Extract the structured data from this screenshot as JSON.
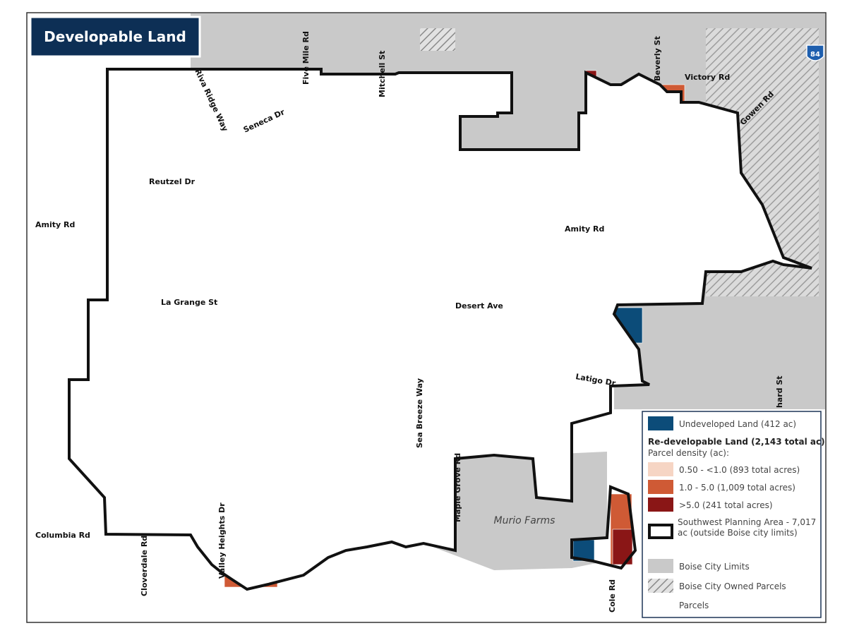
{
  "title": "Developable Land",
  "interstate": "84",
  "roads": [
    "Riva Ridge Way",
    "Five Mile Rd",
    "Mitchell St",
    "Seneca Dr",
    "Beverly St",
    "Victory Rd",
    "Gowen Rd",
    "Reutzel Dr",
    "Amity Rd",
    "Amity Rd",
    "La Grange St",
    "Desert Ave",
    "Latigo Dr",
    "Sea Breeze Way",
    "Maple Grove Rd",
    "Columbia Rd",
    "Cloverdale Rd",
    "Valley Heights Dr",
    "Cole Rd",
    "hard St"
  ],
  "places": [
    "Murio Farms"
  ],
  "legend": {
    "undeveloped": "Undeveloped Land (412 ac)",
    "heading": "Re-developable Land (2,143 total ac)",
    "subheading": "Parcel density (ac):",
    "low": "0.50 - <1.0 (893 total acres)",
    "mid": "1.0 - 5.0 (1,009 total acres)",
    "high": ">5.0 (241 total acres)",
    "planning": "Southwest Planning Area - 7,017 ac (outside Boise city limits)",
    "city": "Boise City Limits",
    "owned": "Boise City Owned Parcels",
    "parcels": "Parcels"
  }
}
